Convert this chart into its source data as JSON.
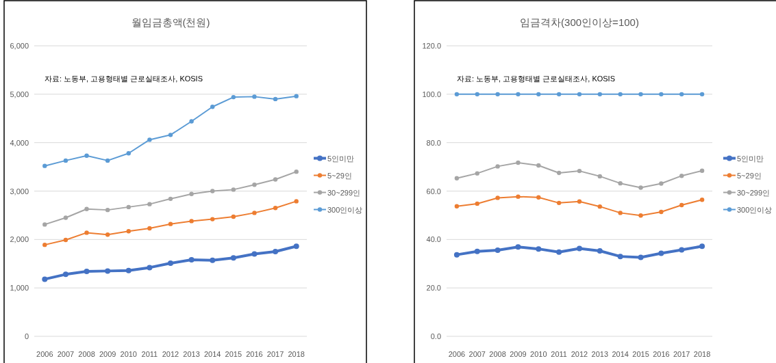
{
  "chart_data": [
    {
      "type": "line",
      "title": "월임금총액(천원)",
      "annotations": [
        "자료: 노동부, 고용형태별 근로실태조사, KOSIS"
      ],
      "categories": [
        "2006",
        "2007",
        "2008",
        "2009",
        "2010",
        "2011",
        "2012",
        "2013",
        "2014",
        "2015",
        "2016",
        "2017",
        "2018"
      ],
      "series": [
        {
          "name": "5인미만",
          "color": "#4472c4",
          "values": [
            1180,
            1280,
            1340,
            1350,
            1360,
            1420,
            1510,
            1580,
            1570,
            1620,
            1700,
            1750,
            1860
          ]
        },
        {
          "name": "5~29인",
          "color": "#ed7d31",
          "values": [
            1890,
            1990,
            2140,
            2100,
            2170,
            2230,
            2320,
            2380,
            2420,
            2470,
            2550,
            2650,
            2790
          ]
        },
        {
          "name": "30~299인",
          "color": "#a5a5a5",
          "values": [
            2310,
            2450,
            2630,
            2610,
            2670,
            2730,
            2840,
            2940,
            3000,
            3030,
            3130,
            3240,
            3400
          ]
        },
        {
          "name": "300인이상",
          "color": "#5b9bd5",
          "values": [
            3520,
            3630,
            3730,
            3630,
            3780,
            4060,
            4160,
            4440,
            4740,
            4940,
            4950,
            4900,
            4960
          ]
        }
      ],
      "ylim": [
        0,
        6000
      ],
      "yticks": [
        0,
        {
          "value": 1000,
          "label": "1,000"
        },
        {
          "value": 2000,
          "label": "2,000"
        },
        {
          "value": 3000,
          "label": "3,000"
        },
        {
          "value": 4000,
          "label": "4,000"
        },
        {
          "value": 5000,
          "label": "5,000"
        },
        {
          "value": 6000,
          "label": "6,000"
        }
      ],
      "grid": "y",
      "legend": "right",
      "marker": "circle"
    },
    {
      "type": "line",
      "title": "임금격차(300인이상=100)",
      "annotations": [
        "자료: 노동부, 고용형태별 근로실태조사, KOSIS"
      ],
      "categories": [
        "2006",
        "2007",
        "2008",
        "2009",
        "2010",
        "2011",
        "2012",
        "2013",
        "2014",
        "2015",
        "2016",
        "2017",
        "2018"
      ],
      "series": [
        {
          "name": "5인미만",
          "color": "#4472c4",
          "values": [
            33.7,
            35.1,
            35.6,
            36.9,
            36.1,
            34.8,
            36.3,
            35.3,
            33.0,
            32.6,
            34.3,
            35.7,
            37.2
          ]
        },
        {
          "name": "5~29인",
          "color": "#ed7d31",
          "values": [
            53.7,
            54.8,
            57.2,
            57.7,
            57.4,
            55.1,
            55.7,
            53.6,
            51.0,
            49.9,
            51.4,
            54.2,
            56.4
          ]
        },
        {
          "name": "30~299인",
          "color": "#a5a5a5",
          "values": [
            65.3,
            67.3,
            70.2,
            71.7,
            70.6,
            67.5,
            68.3,
            66.1,
            63.2,
            61.4,
            63.1,
            66.3,
            68.4
          ]
        },
        {
          "name": "300인이상",
          "color": "#5b9bd5",
          "values": [
            100,
            100,
            100,
            100,
            100,
            100,
            100,
            100,
            100,
            100,
            100,
            100,
            100
          ]
        }
      ],
      "ylim": [
        0,
        120
      ],
      "yticks": [
        {
          "value": 0,
          "label": "0.0"
        },
        {
          "value": 20,
          "label": "20.0"
        },
        {
          "value": 40,
          "label": "40.0"
        },
        {
          "value": 60,
          "label": "60.0"
        },
        {
          "value": 80,
          "label": "80.0"
        },
        {
          "value": 100,
          "label": "100.0"
        },
        {
          "value": 120,
          "label": "120.0"
        }
      ],
      "grid": "y",
      "legend": "right",
      "marker": "circle"
    }
  ]
}
